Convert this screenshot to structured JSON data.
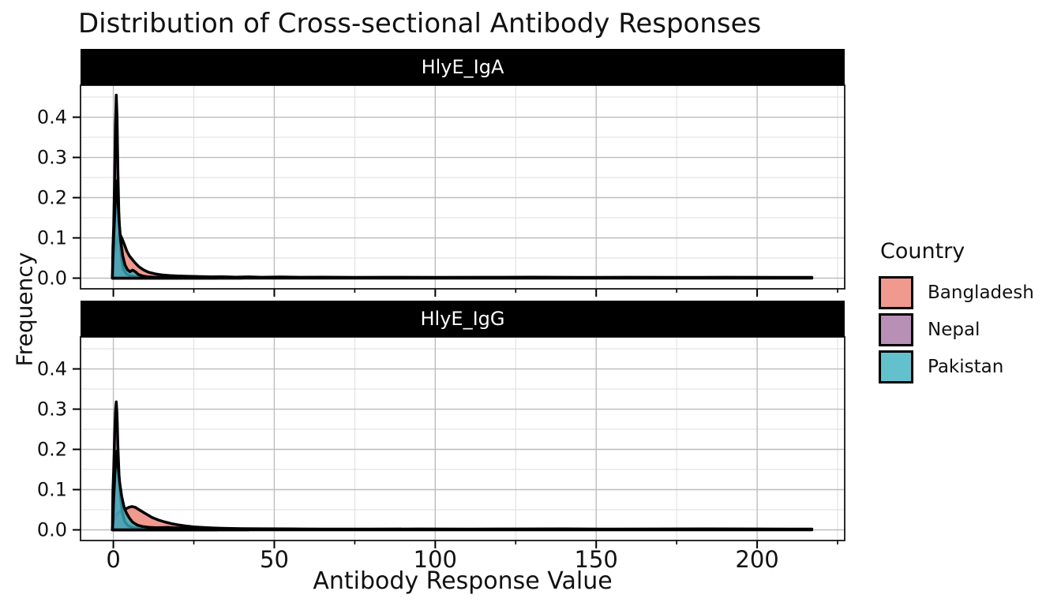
{
  "title": "Distribution of Cross-sectional Antibody Responses",
  "axes": {
    "x_title": "Antibody Response Value",
    "y_title": "Frequency"
  },
  "legend": {
    "title": "Country",
    "items": [
      {
        "label": "Bangladesh",
        "color": "#EC7C6F"
      },
      {
        "label": "Nepal",
        "color": "#A470A0"
      },
      {
        "label": "Pakistan",
        "color": "#36B0BE"
      }
    ]
  },
  "chart_data": {
    "type": "area",
    "subtype": "density",
    "title": "Distribution of Cross-sectional Antibody Responses",
    "xlabel": "Antibody Response Value",
    "ylabel": "Frequency",
    "legend_title": "Country",
    "legend_position": "right",
    "grid": true,
    "xlim": [
      -10.2,
      227.2
    ],
    "ylim": [
      -0.0265,
      0.4795
    ],
    "x_ticks": [
      {
        "v": 0,
        "label": "0"
      },
      {
        "v": 50,
        "label": "50"
      },
      {
        "v": 100,
        "label": "100"
      },
      {
        "v": 150,
        "label": "150"
      },
      {
        "v": 200,
        "label": "200"
      }
    ],
    "x_minor": [
      25,
      75,
      125,
      175,
      225
    ],
    "y_ticks": [
      {
        "v": 0.0,
        "label": "0.0"
      },
      {
        "v": 0.1,
        "label": "0.1"
      },
      {
        "v": 0.2,
        "label": "0.2"
      },
      {
        "v": 0.3,
        "label": "0.3"
      },
      {
        "v": 0.4,
        "label": "0.4"
      }
    ],
    "y_minor": [
      0.05,
      0.15,
      0.25,
      0.35,
      0.45
    ],
    "fill_opacity": 0.78,
    "stroke": "#000000",
    "stroke_width": 3.5,
    "facets": [
      {
        "label": "HlyE_IgA",
        "series": [
          {
            "name": "Bangladesh",
            "color": "#EC7C6F",
            "points": [
              [
                -0.3,
                0
              ],
              [
                -0.1,
                0.028
              ],
              [
                0.5,
                0.068
              ],
              [
                1.2,
                0.098
              ],
              [
                1.9,
                0.112
              ],
              [
                2.6,
                0.1
              ],
              [
                3.4,
                0.084
              ],
              [
                4.2,
                0.067
              ],
              [
                5,
                0.055
              ],
              [
                6,
                0.045
              ],
              [
                7,
                0.036
              ],
              [
                8,
                0.028
              ],
              [
                9.5,
                0.02
              ],
              [
                11,
                0.0145
              ],
              [
                13,
                0.0105
              ],
              [
                15,
                0.008
              ],
              [
                17.5,
                0.0065
              ],
              [
                20,
                0.0052
              ],
              [
                23,
                0.0046
              ],
              [
                26,
                0.004
              ],
              [
                30,
                0.0032
              ],
              [
                34,
                0.0036
              ],
              [
                38,
                0.0026
              ],
              [
                42,
                0.0032
              ],
              [
                46,
                0.0022
              ],
              [
                52,
                0.003
              ],
              [
                58,
                0.0022
              ],
              [
                65,
                0.0024
              ],
              [
                75,
                0.0019
              ],
              [
                85,
                0.0022
              ],
              [
                100,
                0.0019
              ],
              [
                115,
                0.0021
              ],
              [
                130,
                0.0024
              ],
              [
                145,
                0.0019
              ],
              [
                160,
                0.0021
              ],
              [
                175,
                0.0019
              ],
              [
                190,
                0.0021
              ],
              [
                205,
                0.0019
              ],
              [
                217,
                0.002
              ]
            ]
          },
          {
            "name": "Nepal",
            "color": "#A470A0",
            "points": [
              [
                -0.3,
                0
              ],
              [
                -0.15,
                0.075
              ],
              [
                0.1,
                0.13
              ],
              [
                0.4,
                0.25
              ],
              [
                0.65,
                0.38
              ],
              [
                0.9,
                0.455
              ],
              [
                1.15,
                0.4
              ],
              [
                1.4,
                0.27
              ],
              [
                1.7,
                0.165
              ],
              [
                2.1,
                0.09
              ],
              [
                2.6,
                0.045
              ],
              [
                3.2,
                0.021
              ],
              [
                4,
                0.011
              ],
              [
                5,
                0.006
              ],
              [
                6.5,
                0.004
              ],
              [
                8.5,
                0.0026
              ],
              [
                12,
                0.0016
              ],
              [
                18,
                0.001
              ],
              [
                25,
                0.0008
              ],
              [
                32,
                0.0006
              ]
            ]
          },
          {
            "name": "Pakistan",
            "color": "#36B0BE",
            "points": [
              [
                -0.3,
                0
              ],
              [
                -0.15,
                0.048
              ],
              [
                0.1,
                0.1
              ],
              [
                0.5,
                0.17
              ],
              [
                0.85,
                0.228
              ],
              [
                1.1,
                0.242
              ],
              [
                1.4,
                0.198
              ],
              [
                1.8,
                0.14
              ],
              [
                2.3,
                0.092
              ],
              [
                2.9,
                0.056
              ],
              [
                3.6,
                0.033
              ],
              [
                4.4,
                0.021
              ],
              [
                5.2,
                0.016
              ],
              [
                6,
                0.02
              ],
              [
                6.8,
                0.016
              ],
              [
                7.8,
                0.009
              ],
              [
                9,
                0.0055
              ],
              [
                10.5,
                0.0036
              ],
              [
                12.5,
                0.0026
              ],
              [
                15,
                0.002
              ],
              [
                20,
                0.0015
              ],
              [
                28,
                0.001
              ],
              [
                40,
                0.0008
              ]
            ]
          }
        ]
      },
      {
        "label": "HlyE_IgG",
        "series": [
          {
            "name": "Bangladesh",
            "color": "#EC7C6F",
            "points": [
              [
                -0.3,
                0
              ],
              [
                -0.1,
                0.017
              ],
              [
                0.8,
                0.037
              ],
              [
                1.8,
                0.045
              ],
              [
                2.8,
                0.049
              ],
              [
                3.8,
                0.052
              ],
              [
                4.8,
                0.056
              ],
              [
                5.8,
                0.058
              ],
              [
                6.8,
                0.056
              ],
              [
                7.8,
                0.051
              ],
              [
                9,
                0.045
              ],
              [
                10.5,
                0.038
              ],
              [
                12,
                0.031
              ],
              [
                14,
                0.0245
              ],
              [
                16,
                0.0195
              ],
              [
                18,
                0.0155
              ],
              [
                20,
                0.0125
              ],
              [
                22.5,
                0.0095
              ],
              [
                25,
                0.0075
              ],
              [
                28,
                0.0058
              ],
              [
                31,
                0.0047
              ],
              [
                35,
                0.0037
              ],
              [
                40,
                0.003
              ],
              [
                46,
                0.0028
              ],
              [
                55,
                0.0023
              ],
              [
                65,
                0.002
              ],
              [
                80,
                0.0019
              ],
              [
                95,
                0.0021
              ],
              [
                110,
                0.0019
              ],
              [
                125,
                0.0021
              ],
              [
                140,
                0.0023
              ],
              [
                155,
                0.0019
              ],
              [
                170,
                0.0021
              ],
              [
                185,
                0.0026
              ],
              [
                200,
                0.0021
              ],
              [
                210,
                0.0019
              ],
              [
                217,
                0.002
              ]
            ]
          },
          {
            "name": "Nepal",
            "color": "#A470A0",
            "points": [
              [
                -0.3,
                0
              ],
              [
                -0.15,
                0.095
              ],
              [
                0.1,
                0.15
              ],
              [
                0.4,
                0.235
              ],
              [
                0.7,
                0.3
              ],
              [
                0.9,
                0.318
              ],
              [
                1.15,
                0.285
              ],
              [
                1.4,
                0.21
              ],
              [
                1.8,
                0.13
              ],
              [
                2.2,
                0.082
              ],
              [
                2.8,
                0.043
              ],
              [
                3.5,
                0.021
              ],
              [
                4.5,
                0.0105
              ],
              [
                6,
                0.0055
              ],
              [
                8,
                0.0032
              ],
              [
                11,
                0.002
              ],
              [
                16,
                0.0013
              ],
              [
                24,
                0.0009
              ],
              [
                32,
                0.0006
              ]
            ]
          },
          {
            "name": "Pakistan",
            "color": "#36B0BE",
            "points": [
              [
                -0.3,
                0
              ],
              [
                -0.15,
                0.02
              ],
              [
                0.1,
                0.078
              ],
              [
                0.5,
                0.14
              ],
              [
                0.85,
                0.186
              ],
              [
                1.1,
                0.196
              ],
              [
                1.5,
                0.156
              ],
              [
                2,
                0.116
              ],
              [
                2.6,
                0.083
              ],
              [
                3.3,
                0.058
              ],
              [
                4,
                0.043
              ],
              [
                5,
                0.029
              ],
              [
                6,
                0.019
              ],
              [
                7.5,
                0.0115
              ],
              [
                9,
                0.0085
              ],
              [
                11,
                0.0065
              ],
              [
                13,
                0.0052
              ],
              [
                15,
                0.0056
              ],
              [
                17,
                0.006
              ],
              [
                19,
                0.005
              ],
              [
                21,
                0.0042
              ],
              [
                24,
                0.0036
              ],
              [
                27,
                0.0026
              ],
              [
                31,
                0.002
              ],
              [
                36,
                0.0016
              ],
              [
                42,
                0.0011
              ]
            ]
          }
        ]
      }
    ]
  }
}
